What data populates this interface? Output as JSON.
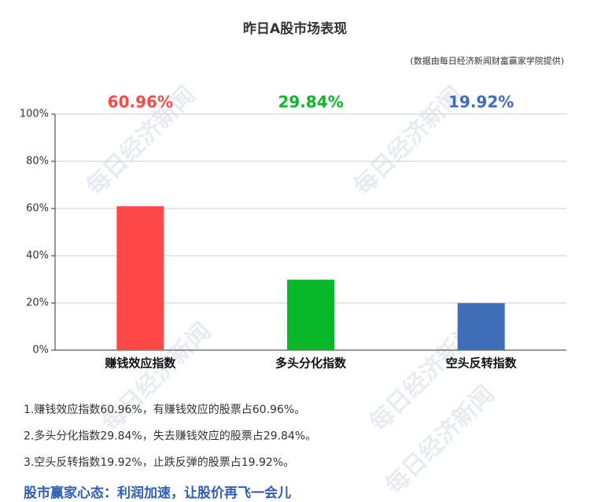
{
  "chart_data": {
    "type": "bar",
    "title": "昨日A股市场表现",
    "subtitle": "(数据由每日经济新闻财富赢家学院提供)",
    "categories": [
      "赚钱效应指数",
      "多头分化指数",
      "空头反转指数"
    ],
    "values": [
      60.96,
      29.84,
      19.92
    ],
    "value_labels": [
      "60.96%",
      "29.84%",
      "19.92%"
    ],
    "colors": [
      "#ff4848",
      "#08b828",
      "#3f6db7"
    ],
    "ylim": [
      0,
      100
    ],
    "yticks": [
      {
        "value": 0,
        "label": "0%"
      },
      {
        "value": 20,
        "label": "20%"
      },
      {
        "value": 40,
        "label": "40%"
      },
      {
        "value": 60,
        "label": "60%"
      },
      {
        "value": 80,
        "label": "80%"
      },
      {
        "value": 100,
        "label": "100%"
      }
    ],
    "grid": true,
    "notes": [
      "1.赚钱效应指数60.96%，有赚钱效应的股票占60.96%。",
      "2.多头分化指数29.84%，失去赚钱效应的股票占29.84%。",
      "3.空头反转指数19.92%，止跌反弹的股票占19.92%。"
    ],
    "slogan": "股市赢家心态：利润加速，让股价再飞一会儿",
    "watermark": "每日经济新闻"
  }
}
